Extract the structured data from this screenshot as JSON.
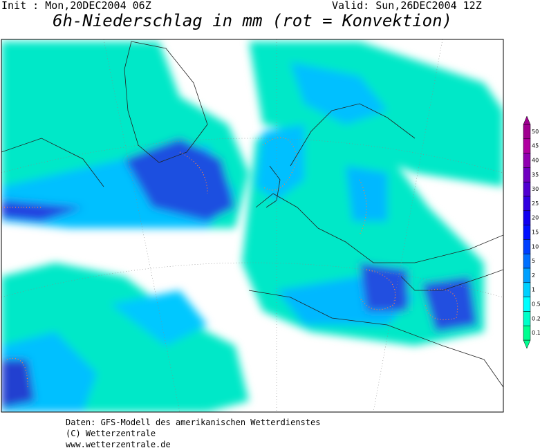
{
  "header": {
    "init": "Init : Mon,20DEC2004 06Z",
    "valid": "Valid: Sun,26DEC2004 12Z",
    "title": "6h-Niederschlag in mm (rot = Konvektion)"
  },
  "legend": [
    {
      "value": 50,
      "color": "#a00090"
    },
    {
      "value": 45,
      "color": "#b000a0"
    },
    {
      "value": 40,
      "color": "#9000b0"
    },
    {
      "value": 35,
      "color": "#7000c0"
    },
    {
      "value": 30,
      "color": "#5000d0"
    },
    {
      "value": 25,
      "color": "#3000e0"
    },
    {
      "value": 20,
      "color": "#1000f0"
    },
    {
      "value": 15,
      "color": "#0010ff"
    },
    {
      "value": 10,
      "color": "#0040ff"
    },
    {
      "value": 5,
      "color": "#0070ff"
    },
    {
      "value": 2,
      "color": "#00a0ff"
    },
    {
      "value": 1,
      "color": "#00d0ff"
    },
    {
      "value": 0.5,
      "color": "#00ffff"
    },
    {
      "value": 0.2,
      "color": "#00ffc8"
    },
    {
      "value": 0.1,
      "color": "#00ff90"
    }
  ],
  "footer": {
    "lines": [
      "Daten: GFS-Modell des amerikanischen Wetterdienstes",
      "(C) Wetterzentrale",
      "www.wetterzentrale.de"
    ]
  }
}
